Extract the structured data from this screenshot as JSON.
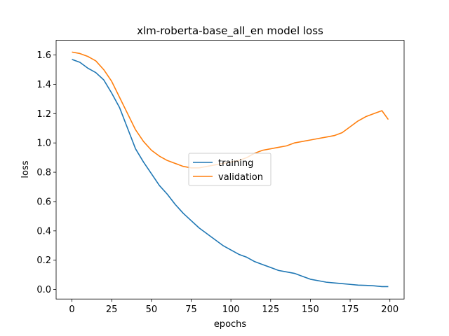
{
  "chart_data": {
    "type": "line",
    "title": "xlm-roberta-base_all_en model loss",
    "xlabel": "epochs",
    "ylabel": "loss",
    "xlim": [
      -9.95,
      208.95
    ],
    "ylim": [
      -0.065,
      1.7
    ],
    "xticks": [
      0,
      25,
      50,
      75,
      100,
      125,
      150,
      175,
      200
    ],
    "xtick_labels": [
      "0",
      "25",
      "50",
      "75",
      "100",
      "125",
      "150",
      "175",
      "200"
    ],
    "yticks": [
      0.0,
      0.2,
      0.4,
      0.6,
      0.8,
      1.0,
      1.2,
      1.4,
      1.6
    ],
    "ytick_labels": [
      "0.0",
      "0.2",
      "0.4",
      "0.6",
      "0.8",
      "1.0",
      "1.2",
      "1.4",
      "1.6"
    ],
    "grid": false,
    "legend_position": "center",
    "series": [
      {
        "name": "training",
        "color": "#1f77b4",
        "x": [
          0,
          5,
          10,
          15,
          20,
          25,
          30,
          35,
          40,
          45,
          50,
          55,
          60,
          65,
          70,
          75,
          80,
          85,
          90,
          95,
          100,
          105,
          110,
          115,
          120,
          125,
          130,
          135,
          140,
          145,
          150,
          155,
          160,
          165,
          170,
          175,
          180,
          185,
          190,
          195,
          199
        ],
        "y": [
          1.57,
          1.55,
          1.51,
          1.48,
          1.43,
          1.34,
          1.24,
          1.1,
          0.96,
          0.87,
          0.79,
          0.71,
          0.65,
          0.58,
          0.52,
          0.47,
          0.42,
          0.38,
          0.34,
          0.3,
          0.27,
          0.24,
          0.22,
          0.19,
          0.17,
          0.15,
          0.13,
          0.12,
          0.11,
          0.09,
          0.07,
          0.06,
          0.05,
          0.045,
          0.04,
          0.035,
          0.03,
          0.028,
          0.025,
          0.02,
          0.02
        ]
      },
      {
        "name": "validation",
        "color": "#ff7f0e",
        "x": [
          0,
          5,
          10,
          15,
          20,
          25,
          30,
          35,
          40,
          45,
          50,
          55,
          60,
          65,
          70,
          75,
          80,
          85,
          90,
          95,
          100,
          105,
          110,
          115,
          120,
          125,
          130,
          135,
          140,
          145,
          150,
          155,
          160,
          165,
          170,
          175,
          180,
          185,
          190,
          195,
          199
        ],
        "y": [
          1.62,
          1.61,
          1.59,
          1.56,
          1.5,
          1.42,
          1.31,
          1.2,
          1.09,
          1.01,
          0.95,
          0.91,
          0.88,
          0.86,
          0.84,
          0.83,
          0.83,
          0.84,
          0.85,
          0.86,
          0.87,
          0.88,
          0.9,
          0.93,
          0.95,
          0.96,
          0.97,
          0.98,
          1.0,
          1.01,
          1.02,
          1.03,
          1.04,
          1.05,
          1.07,
          1.11,
          1.15,
          1.18,
          1.2,
          1.22,
          1.16
        ]
      }
    ]
  }
}
